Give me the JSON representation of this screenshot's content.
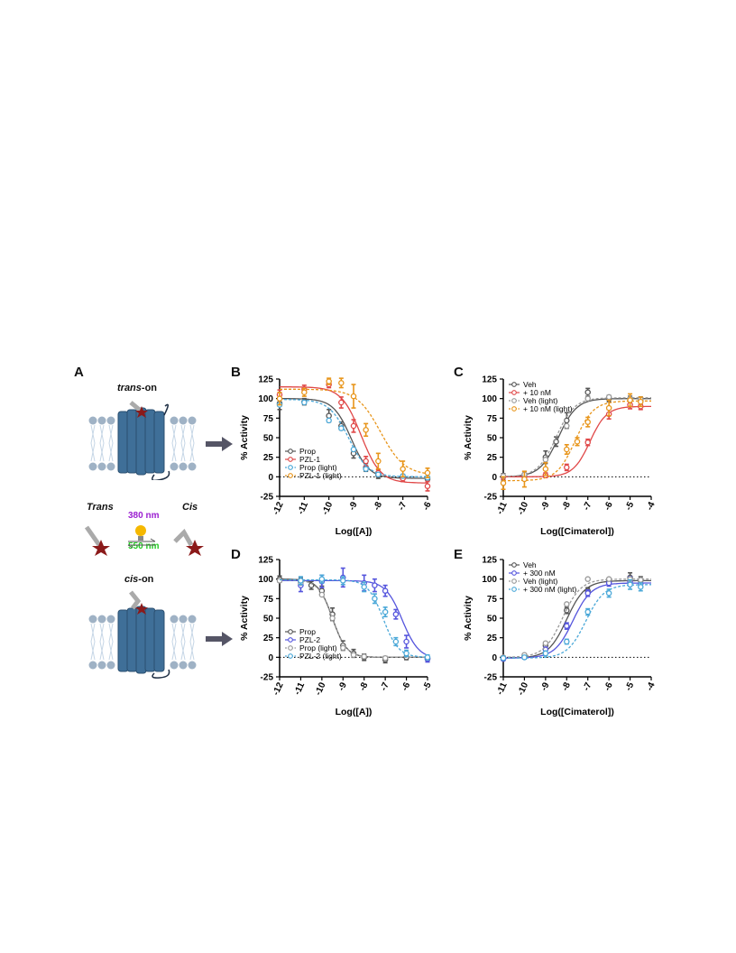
{
  "panels": {
    "A": {
      "letter": "A",
      "trans_on_prefix": "trans",
      "trans_on_suffix": "-on",
      "cis_on_prefix": "cis",
      "cis_on_suffix": "-on",
      "trans_label": "Trans",
      "cis_label": "Cis",
      "wavelength_top": "380 nm",
      "wavelength_bottom": "550 nm",
      "colors": {
        "receptor": "#3f6f98",
        "membrane": "#9fb2c5",
        "ligand_star": "#8b1a1a",
        "bulb": "#f5b800",
        "nm380": "#9b1fd1",
        "nm550": "#22cc22",
        "arrow": "#555566"
      }
    }
  },
  "chart_data": [
    {
      "letter": "B",
      "type": "scatter",
      "xlabel": "Log([A])",
      "ylabel": "% Activity",
      "xlim": [
        -12,
        -6
      ],
      "ylim": [
        -25,
        125
      ],
      "xticks": [
        -12,
        -11,
        -10,
        -9,
        -8,
        -7,
        -6
      ],
      "yticks": [
        -25,
        0,
        25,
        50,
        75,
        100,
        125
      ],
      "legend_position": "lower-left",
      "series": [
        {
          "name": "Prop",
          "color": "#555555",
          "dashed": false,
          "error_bars": true,
          "x": [
            -12,
            -11,
            -10,
            -9.5,
            -9,
            -8.5,
            -8,
            -7,
            -6
          ],
          "y": [
            94,
            96,
            78,
            65,
            30,
            12,
            2,
            0,
            -3
          ],
          "err": [
            8,
            4,
            8,
            5,
            6,
            5,
            4,
            3,
            3
          ],
          "curve": {
            "top": 100,
            "bottom": -2,
            "logec50": -9.1,
            "hill": 1.2
          }
        },
        {
          "name": "PZL-1",
          "color": "#e04848",
          "dashed": false,
          "error_bars": true,
          "x": [
            -12,
            -11,
            -10,
            -9.5,
            -9,
            -8.5,
            -8,
            -7,
            -6
          ],
          "y": [
            105,
            112,
            118,
            95,
            65,
            20,
            5,
            -2,
            -12
          ],
          "err": [
            6,
            5,
            4,
            7,
            8,
            6,
            4,
            4,
            6
          ],
          "curve": {
            "top": 115,
            "bottom": -8,
            "logec50": -8.7,
            "hill": 1.1
          }
        },
        {
          "name": "Prop (light)",
          "color": "#4aa8d8",
          "dashed": true,
          "error_bars": false,
          "x": [
            -12,
            -11,
            -10,
            -9.5,
            -9,
            -8.5,
            -8,
            -7,
            -6
          ],
          "y": [
            92,
            95,
            72,
            62,
            35,
            10,
            3,
            1,
            -1
          ],
          "curve": {
            "top": 99,
            "bottom": 0,
            "logec50": -9.2,
            "hill": 1.1
          }
        },
        {
          "name": "PZL-1 (light)",
          "color": "#e8951a",
          "dashed": true,
          "error_bars": true,
          "x": [
            -12,
            -11,
            -10,
            -9.5,
            -9,
            -8.5,
            -8,
            -7,
            -6
          ],
          "y": [
            100,
            108,
            122,
            120,
            103,
            60,
            20,
            10,
            5
          ],
          "err": [
            8,
            5,
            4,
            6,
            15,
            8,
            10,
            10,
            6
          ],
          "curve": {
            "top": 112,
            "bottom": 2,
            "logec50": -7.9,
            "hill": 0.9
          }
        }
      ]
    },
    {
      "letter": "C",
      "type": "scatter",
      "xlabel": "Log([Cimaterol])",
      "ylabel": "% Activity",
      "xlim": [
        -11,
        -4
      ],
      "ylim": [
        -25,
        125
      ],
      "xticks": [
        -11,
        -10,
        -9,
        -8,
        -7,
        -6,
        -5,
        -4
      ],
      "yticks": [
        -25,
        0,
        25,
        50,
        75,
        100,
        125
      ],
      "legend_position": "top-left",
      "series": [
        {
          "name": "Veh",
          "color": "#555555",
          "dashed": false,
          "error_bars": true,
          "x": [
            -11,
            -10,
            -9,
            -8.5,
            -8,
            -7,
            -6,
            -5,
            -4.5
          ],
          "y": [
            0,
            2,
            25,
            45,
            72,
            108,
            100,
            98,
            97
          ],
          "err": [
            4,
            5,
            8,
            6,
            10,
            5,
            4,
            5,
            5
          ],
          "curve": {
            "top": 100,
            "bottom": 0,
            "logec50": -8.4,
            "hill": 1
          }
        },
        {
          "name": "+ 10 nM",
          "color": "#e04848",
          "dashed": false,
          "error_bars": true,
          "x": [
            -11,
            -10,
            -9,
            -8,
            -7,
            -6,
            -5,
            -4.5
          ],
          "y": [
            0,
            0,
            2,
            12,
            44,
            80,
            92,
            90
          ],
          "err": [
            3,
            3,
            3,
            4,
            4,
            6,
            5,
            4
          ],
          "curve": {
            "top": 90,
            "bottom": 0,
            "logec50": -6.9,
            "hill": 1.1
          }
        },
        {
          "name": "Veh (light)",
          "color": "#999999",
          "dashed": true,
          "error_bars": false,
          "x": [
            -11,
            -10,
            -9,
            -8,
            -7,
            -6,
            -5,
            -4.5
          ],
          "y": [
            1,
            3,
            22,
            65,
            100,
            102,
            100,
            99
          ],
          "curve": {
            "top": 101,
            "bottom": 0,
            "logec50": -8.5,
            "hill": 1
          }
        },
        {
          "name": "+ 10 nM (light)",
          "color": "#e8951a",
          "dashed": true,
          "error_bars": true,
          "x": [
            -11,
            -10,
            -9,
            -8,
            -7.5,
            -7,
            -6,
            -5,
            -4.5
          ],
          "y": [
            -8,
            -3,
            10,
            35,
            45,
            70,
            88,
            98,
            96
          ],
          "err": [
            8,
            10,
            8,
            6,
            5,
            6,
            10,
            8,
            6
          ],
          "curve": {
            "top": 97,
            "bottom": -5,
            "logec50": -7.6,
            "hill": 1
          }
        }
      ]
    },
    {
      "letter": "D",
      "type": "scatter",
      "xlabel": "Log([A])",
      "ylabel": "% Activity",
      "xlim": [
        -12,
        -5
      ],
      "ylim": [
        -25,
        125
      ],
      "xticks": [
        -12,
        -11,
        -10,
        -9,
        -8,
        -7,
        -6,
        -5
      ],
      "yticks": [
        -25,
        0,
        25,
        50,
        75,
        100,
        125
      ],
      "legend_position": "lower-left",
      "series": [
        {
          "name": "Prop",
          "color": "#555555",
          "dashed": false,
          "error_bars": true,
          "x": [
            -12,
            -11,
            -10.5,
            -10,
            -9.5,
            -9,
            -8.5,
            -8,
            -7,
            -6,
            -5
          ],
          "y": [
            100,
            97,
            92,
            85,
            55,
            15,
            5,
            0,
            -3,
            0,
            -2
          ],
          "err": [
            4,
            5,
            5,
            6,
            8,
            6,
            5,
            4,
            4,
            3,
            3
          ],
          "curve": {
            "top": 100,
            "bottom": 0,
            "logec50": -9.5,
            "hill": 1.3
          }
        },
        {
          "name": "PZL-2",
          "color": "#5555dd",
          "dashed": false,
          "error_bars": true,
          "x": [
            -11,
            -10,
            -9,
            -8,
            -7.5,
            -7,
            -6.5,
            -6,
            -5
          ],
          "y": [
            92,
            97,
            102,
            95,
            92,
            85,
            55,
            20,
            -2
          ],
          "err": [
            8,
            8,
            12,
            10,
            8,
            7,
            6,
            8,
            4
          ],
          "curve": {
            "top": 98,
            "bottom": -2,
            "logec50": -6.2,
            "hill": 1.1
          }
        },
        {
          "name": "Prop (light)",
          "color": "#999999",
          "dashed": true,
          "error_bars": false,
          "x": [
            -12,
            -11,
            -10,
            -9.5,
            -9,
            -8.5,
            -8,
            -7
          ],
          "y": [
            98,
            95,
            80,
            50,
            12,
            3,
            1,
            -1
          ],
          "curve": {
            "top": 99,
            "bottom": 0,
            "logec50": -9.5,
            "hill": 1.3
          }
        },
        {
          "name": "PZL-2 (light)",
          "color": "#4aa8d8",
          "dashed": true,
          "error_bars": true,
          "x": [
            -11,
            -10,
            -9,
            -8,
            -7.5,
            -7,
            -6.5,
            -6,
            -5
          ],
          "y": [
            98,
            100,
            98,
            90,
            75,
            58,
            20,
            5,
            0
          ],
          "err": [
            5,
            5,
            5,
            6,
            6,
            6,
            5,
            4,
            3
          ],
          "curve": {
            "top": 99,
            "bottom": 0,
            "logec50": -7.1,
            "hill": 1.2
          }
        }
      ]
    },
    {
      "letter": "E",
      "type": "scatter",
      "xlabel": "Log([Cimaterol])",
      "ylabel": "% Activity",
      "xlim": [
        -11,
        -4
      ],
      "ylim": [
        -25,
        125
      ],
      "xticks": [
        -11,
        -10,
        -9,
        -8,
        -7,
        -6,
        -5,
        -4
      ],
      "yticks": [
        -25,
        0,
        25,
        50,
        75,
        100,
        125
      ],
      "legend_position": "top-left",
      "series": [
        {
          "name": "Veh",
          "color": "#555555",
          "dashed": false,
          "error_bars": true,
          "x": [
            -11,
            -10,
            -9,
            -8,
            -7,
            -6,
            -5,
            -4.5
          ],
          "y": [
            -2,
            1,
            15,
            60,
            85,
            97,
            102,
            98
          ],
          "err": [
            2,
            2,
            3,
            4,
            4,
            4,
            6,
            5
          ],
          "curve": {
            "top": 98,
            "bottom": -1,
            "logec50": -8.0,
            "hill": 1
          }
        },
        {
          "name": "+ 300 nM",
          "color": "#5555dd",
          "dashed": false,
          "error_bars": true,
          "x": [
            -11,
            -10,
            -9,
            -8,
            -7,
            -6,
            -5,
            -4.5
          ],
          "y": [
            -2,
            0,
            10,
            40,
            82,
            95,
            97,
            94
          ],
          "err": [
            2,
            2,
            3,
            4,
            4,
            4,
            6,
            5
          ],
          "curve": {
            "top": 95,
            "bottom": -1,
            "logec50": -7.7,
            "hill": 1
          }
        },
        {
          "name": "Veh (light)",
          "color": "#999999",
          "dashed": true,
          "error_bars": false,
          "x": [
            -11,
            -10,
            -9,
            -8,
            -7,
            -6,
            -5,
            -4.5
          ],
          "y": [
            0,
            3,
            18,
            68,
            100,
            100,
            100,
            99
          ],
          "curve": {
            "top": 100,
            "bottom": 0,
            "logec50": -8.2,
            "hill": 1
          }
        },
        {
          "name": "+ 300 nM (light)",
          "color": "#4aa8d8",
          "dashed": true,
          "error_bars": true,
          "x": [
            -11,
            -10,
            -9,
            -8,
            -7,
            -6,
            -5,
            -4.5
          ],
          "y": [
            -1,
            0,
            5,
            20,
            58,
            82,
            93,
            90
          ],
          "err": [
            2,
            2,
            3,
            3,
            4,
            5,
            6,
            5
          ],
          "curve": {
            "top": 93,
            "bottom": -1,
            "logec50": -7.1,
            "hill": 1
          }
        }
      ]
    }
  ]
}
